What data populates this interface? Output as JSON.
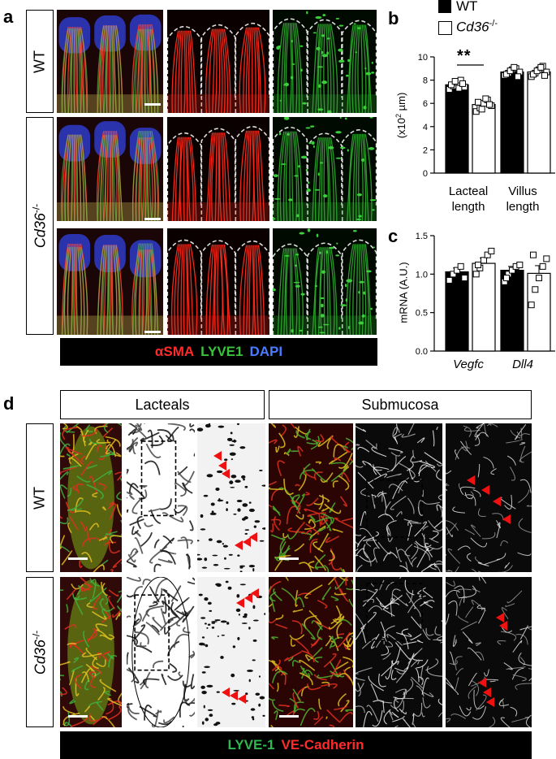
{
  "panel_labels": {
    "a": "a",
    "b": "b",
    "c": "c",
    "d": "d"
  },
  "panel_a": {
    "rows": [
      "WT",
      "Cd36",
      "-/-"
    ],
    "legend": [
      {
        "text": "αSMA",
        "color": "#ff2a2a"
      },
      {
        "text": "LYVE1",
        "color": "#3cc23c"
      },
      {
        "text": "DAPI",
        "color": "#4a7cff"
      }
    ]
  },
  "panel_b": {
    "legend": [
      {
        "label": "WT",
        "fill": "#000000"
      },
      {
        "label": "Cd36",
        "sup": "-/-",
        "fill": "#ffffff"
      }
    ],
    "ylabel_pre": "(x10",
    "ylabel_sup": "2",
    "ylabel_post": " µm)",
    "significance": "**",
    "group_labels": [
      [
        "Lacteal",
        "length"
      ],
      [
        "Villus",
        "length"
      ]
    ]
  },
  "panel_c": {
    "ylabel": "mRNA (A.U.)",
    "group_labels": [
      "Vegfc",
      "Dll4"
    ]
  },
  "panel_d": {
    "headers": [
      "Lacteals",
      "Submucosa"
    ],
    "rows": [
      "WT",
      "Cd36",
      "-/-"
    ],
    "legend": [
      {
        "text": "LYVE-1",
        "color": "#2fb84f"
      },
      {
        "text": "VE-Cadherin",
        "color": "#ff2a2a"
      }
    ]
  },
  "chart_data": [
    {
      "type": "bar",
      "categories": [
        "Lacteal length",
        "Villus length"
      ],
      "series": [
        {
          "name": "WT",
          "values": [
            7.6,
            8.7
          ]
        },
        {
          "name": "Cd36-/-",
          "values": [
            5.9,
            8.7
          ]
        }
      ],
      "ylabel": "(x10² µm)",
      "ylim": [
        0,
        10
      ],
      "yticks": [
        0,
        2,
        4,
        6,
        8,
        10
      ],
      "points": {
        "WT_lacteal": [
          7.2,
          7.5,
          7.8,
          8.0,
          7.4,
          7.6,
          7.9,
          7.3,
          7.7
        ],
        "KO_lacteal": [
          5.3,
          5.6,
          6.0,
          6.3,
          5.8,
          6.1,
          5.5,
          6.4,
          5.9
        ],
        "WT_villus": [
          8.4,
          8.6,
          8.9,
          9.0,
          8.7,
          8.5,
          8.8,
          9.1,
          8.3
        ],
        "KO_villus": [
          8.3,
          8.6,
          8.9,
          9.2,
          8.7,
          8.5,
          8.8,
          9.1,
          8.4
        ]
      },
      "errors": [
        0.15,
        0.2,
        0.15,
        0.15
      ]
    },
    {
      "type": "bar",
      "categories": [
        "Vegfc",
        "Dll4"
      ],
      "series": [
        {
          "name": "WT",
          "values": [
            1.03,
            1.05
          ]
        },
        {
          "name": "Cd36-/-",
          "values": [
            1.14,
            1.01
          ]
        }
      ],
      "ylabel": "mRNA (A.U.)",
      "ylim": [
        0,
        1.5
      ],
      "yticks": [
        0.0,
        0.5,
        1.0,
        1.5
      ],
      "points": {
        "WT_vegfc": [
          0.92,
          1.0,
          1.05,
          1.1,
          0.95
        ],
        "KO_vegfc": [
          1.0,
          1.08,
          1.18,
          1.25,
          1.3,
          1.12
        ],
        "WT_dll4": [
          0.9,
          1.0,
          1.05,
          1.1,
          1.12,
          0.95
        ],
        "KO_dll4": [
          0.6,
          0.8,
          0.95,
          1.1,
          1.2,
          1.25
        ]
      },
      "errors": [
        0.05,
        0.07,
        0.05,
        0.1
      ]
    }
  ]
}
